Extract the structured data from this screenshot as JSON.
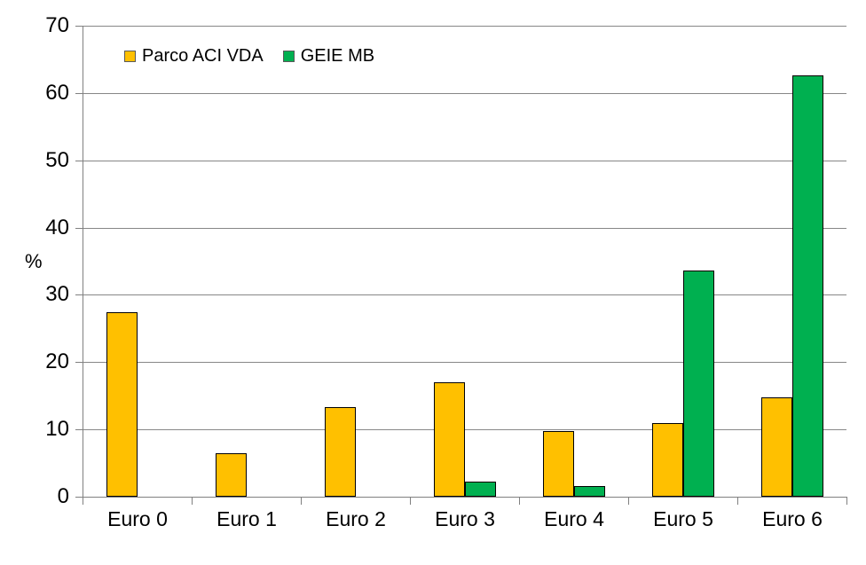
{
  "chart_data": {
    "type": "bar",
    "title": "",
    "xlabel": "",
    "ylabel": "%",
    "categories": [
      "Euro 0",
      "Euro 1",
      "Euro 2",
      "Euro 3",
      "Euro 4",
      "Euro 5",
      "Euro 6"
    ],
    "series": [
      {
        "name": "Parco ACI VDA",
        "color": "#FFC000",
        "values": [
          27.4,
          6.5,
          13.3,
          17.0,
          9.7,
          11.0,
          14.7
        ]
      },
      {
        "name": "GEIE MB",
        "color": "#00B050",
        "values": [
          0,
          0,
          0,
          2.2,
          1.6,
          33.6,
          62.6
        ]
      }
    ],
    "ylim": [
      0,
      70
    ],
    "yticks": [
      0,
      10,
      20,
      30,
      40,
      50,
      60,
      70
    ],
    "grid": true,
    "legend_position": "top-inside-left",
    "colors": {
      "bar_border": "#000000",
      "gridline": "#878787",
      "axis": "#808080",
      "text": "#000000",
      "background": "#FFFFFF"
    }
  }
}
